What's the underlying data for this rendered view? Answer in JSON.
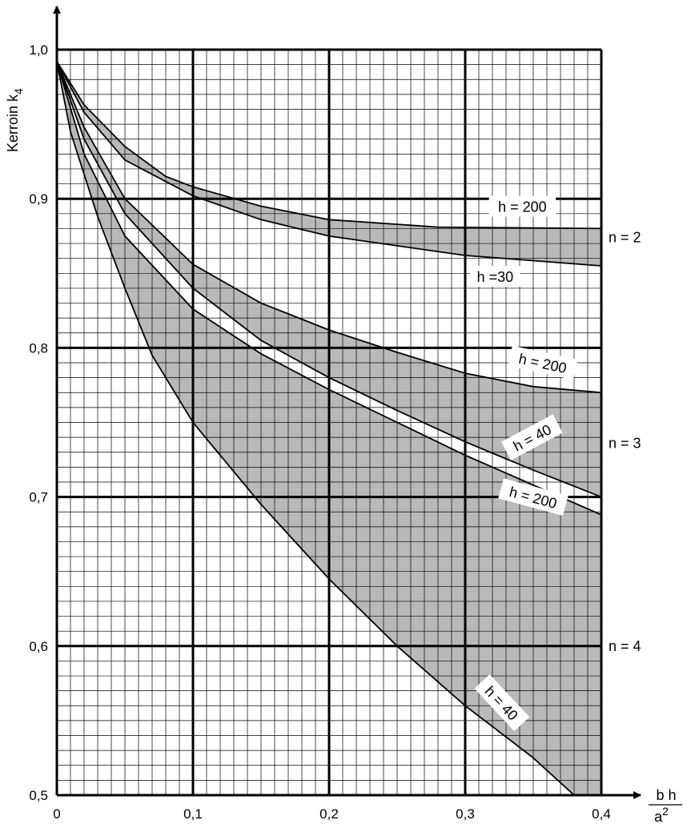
{
  "chart_data": {
    "type": "line",
    "ylabel": "Kerroin k",
    "ylabel_sub": "4",
    "xlabel_numerator": "b h",
    "xlabel_denominator": "a",
    "xlabel_den_sup": "2",
    "xlim": [
      0,
      0.4
    ],
    "ylim": [
      0.5,
      1.0
    ],
    "grid": true,
    "x_major_step": 0.1,
    "y_major_step": 0.1,
    "x_minor_step": 0.01,
    "y_minor_step": 0.01,
    "x_tick_labels": [
      "0",
      "0,1",
      "0,2",
      "0,3",
      "0,4"
    ],
    "y_tick_labels": [
      "0,5",
      "0,6",
      "0,7",
      "0,8",
      "0,9",
      "1,0"
    ],
    "bands": [
      {
        "group": "n = 2",
        "upper": {
          "label": "h = 200",
          "points": [
            [
              0,
              0.992
            ],
            [
              0.02,
              0.963
            ],
            [
              0.05,
              0.935
            ],
            [
              0.08,
              0.915
            ],
            [
              0.1,
              0.908
            ],
            [
              0.15,
              0.895
            ],
            [
              0.2,
              0.886
            ],
            [
              0.28,
              0.881
            ],
            [
              0.4,
              0.88
            ]
          ]
        },
        "lower": {
          "label": "h =30",
          "points": [
            [
              0,
              0.992
            ],
            [
              0.02,
              0.958
            ],
            [
              0.05,
              0.926
            ],
            [
              0.1,
              0.902
            ],
            [
              0.15,
              0.886
            ],
            [
              0.2,
              0.875
            ],
            [
              0.3,
              0.862
            ],
            [
              0.4,
              0.855
            ]
          ]
        }
      },
      {
        "group": "n = 3",
        "upper": {
          "label": "h = 200",
          "points": [
            [
              0,
              0.992
            ],
            [
              0.02,
              0.948
            ],
            [
              0.05,
              0.9
            ],
            [
              0.1,
              0.856
            ],
            [
              0.15,
              0.83
            ],
            [
              0.2,
              0.812
            ],
            [
              0.25,
              0.797
            ],
            [
              0.3,
              0.783
            ],
            [
              0.35,
              0.774
            ],
            [
              0.4,
              0.77
            ]
          ]
        },
        "lower": {
          "label": "h = 40",
          "points": [
            [
              0,
              0.992
            ],
            [
              0.02,
              0.94
            ],
            [
              0.05,
              0.89
            ],
            [
              0.1,
              0.84
            ],
            [
              0.15,
              0.805
            ],
            [
              0.2,
              0.78
            ],
            [
              0.25,
              0.758
            ],
            [
              0.3,
              0.737
            ],
            [
              0.35,
              0.718
            ],
            [
              0.4,
              0.7
            ]
          ]
        }
      },
      {
        "group": "n = 4",
        "upper": {
          "label": "h = 200",
          "points": [
            [
              0,
              0.992
            ],
            [
              0.02,
              0.93
            ],
            [
              0.05,
              0.875
            ],
            [
              0.1,
              0.826
            ],
            [
              0.15,
              0.796
            ],
            [
              0.2,
              0.772
            ],
            [
              0.25,
              0.75
            ],
            [
              0.3,
              0.728
            ],
            [
              0.35,
              0.708
            ],
            [
              0.4,
              0.688
            ]
          ]
        },
        "lower": {
          "label": "h = 40",
          "points": [
            [
              0,
              0.992
            ],
            [
              0.01,
              0.945
            ],
            [
              0.03,
              0.888
            ],
            [
              0.05,
              0.84
            ],
            [
              0.07,
              0.795
            ],
            [
              0.1,
              0.75
            ],
            [
              0.15,
              0.695
            ],
            [
              0.2,
              0.645
            ],
            [
              0.25,
              0.6
            ],
            [
              0.3,
              0.56
            ],
            [
              0.35,
              0.525
            ],
            [
              0.38,
              0.5
            ]
          ]
        }
      }
    ],
    "group_labels": [
      {
        "text": "n = 2",
        "y": 0.874
      },
      {
        "text": "n = 3",
        "y": 0.736
      },
      {
        "text": "n = 4",
        "y": 0.6
      }
    ],
    "annotations": [
      {
        "text": "h = 200",
        "x": 0.342,
        "y": 0.895,
        "rotate": 0
      },
      {
        "text": "h =30",
        "x": 0.322,
        "y": 0.848,
        "rotate": 0
      },
      {
        "text": "h = 200",
        "x": 0.357,
        "y": 0.79,
        "rotate": 12
      },
      {
        "text": "h = 40",
        "x": 0.349,
        "y": 0.74,
        "rotate": -28
      },
      {
        "text": "h = 200",
        "x": 0.35,
        "y": 0.7,
        "rotate": 15
      },
      {
        "text": "h = 40",
        "x": 0.327,
        "y": 0.562,
        "rotate": 47
      }
    ]
  }
}
